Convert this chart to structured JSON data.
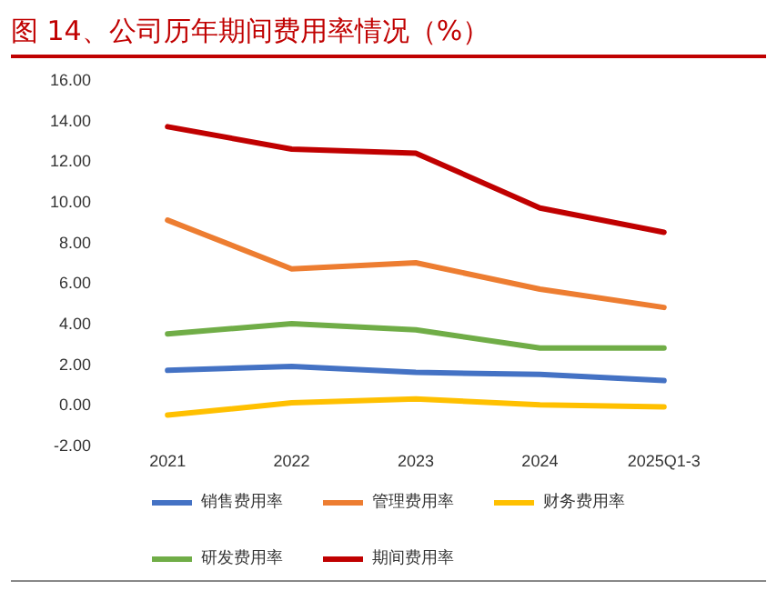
{
  "chart_data": {
    "type": "line",
    "title": "图 14、公司历年期间费用率情况（%）",
    "categories": [
      "2021",
      "2022",
      "2023",
      "2024",
      "2025Q1-3"
    ],
    "series": [
      {
        "name": "销售费用率",
        "color": "#4472c4",
        "values": [
          1.7,
          1.9,
          1.6,
          1.5,
          1.2
        ]
      },
      {
        "name": "管理费用率",
        "color": "#ed7d31",
        "values": [
          9.1,
          6.7,
          7.0,
          5.7,
          4.8
        ]
      },
      {
        "name": "财务费用率",
        "color": "#ffc000",
        "values": [
          -0.5,
          0.1,
          0.3,
          0.0,
          -0.1
        ]
      },
      {
        "name": "研发费用率",
        "color": "#70ad47",
        "values": [
          3.5,
          4.0,
          3.7,
          2.8,
          2.8
        ]
      },
      {
        "name": "期间费用率",
        "color": "#c00000",
        "values": [
          13.7,
          12.6,
          12.4,
          9.7,
          8.5
        ]
      }
    ],
    "ylim": [
      -2,
      16
    ],
    "yticks": [
      {
        "value": -2,
        "label": "-2.00"
      },
      {
        "value": 0,
        "label": "0.00"
      },
      {
        "value": 2,
        "label": "2.00"
      },
      {
        "value": 4,
        "label": "4.00"
      },
      {
        "value": 6,
        "label": "6.00"
      },
      {
        "value": 8,
        "label": "8.00"
      },
      {
        "value": 10,
        "label": "10.00"
      },
      {
        "value": 12,
        "label": "12.00"
      },
      {
        "value": 14,
        "label": "14.00"
      },
      {
        "value": 16,
        "label": "16.00"
      }
    ],
    "grid": false,
    "legend": "bottom",
    "marker": "none",
    "line_style": "solid"
  }
}
